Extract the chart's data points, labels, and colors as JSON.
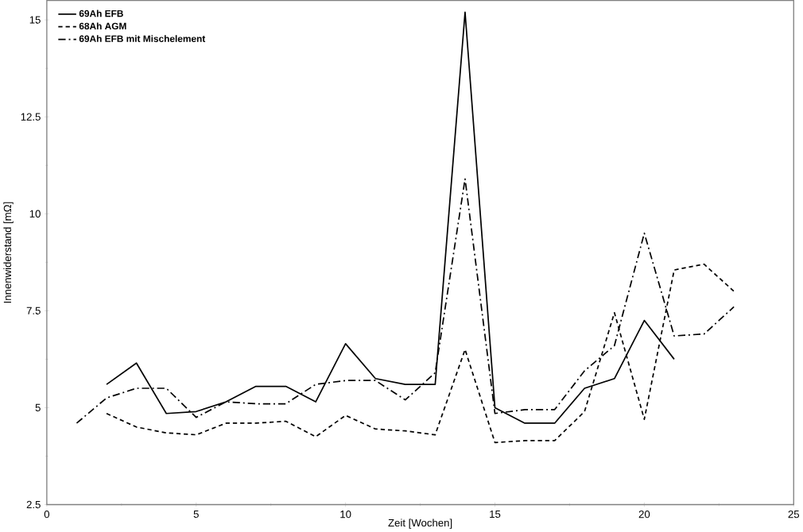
{
  "chart_data": {
    "type": "line",
    "xlabel": "Zeit [Wochen]",
    "ylabel": "Innenwiderstand [mΩ]",
    "xlim": [
      0,
      25
    ],
    "ylim": [
      2.5,
      15.5
    ],
    "xticks": [
      0,
      5,
      10,
      15,
      20,
      25
    ],
    "yticks": [
      2.5,
      5,
      7.5,
      10,
      12.5,
      15
    ],
    "legend": "top left",
    "grid": false,
    "marker": "none",
    "series": [
      {
        "name": "69Ah EFB",
        "color": "#000000",
        "line_style": "solid",
        "x": [
          2,
          3,
          4,
          5,
          6,
          7,
          8,
          9,
          10,
          11,
          12,
          13,
          14,
          15,
          16,
          17,
          18,
          19,
          20,
          21
        ],
        "values": [
          5.6,
          6.15,
          4.85,
          4.9,
          5.15,
          5.55,
          5.55,
          5.15,
          6.65,
          5.75,
          5.6,
          5.6,
          15.2,
          5.0,
          4.6,
          4.6,
          5.5,
          5.75,
          7.25,
          6.25
        ]
      },
      {
        "name": "68Ah AGM",
        "color": "#000000",
        "line_style": "dashed",
        "x": [
          2,
          3,
          4,
          5,
          6,
          7,
          8,
          9,
          10,
          11,
          12,
          13,
          14,
          15,
          16,
          17,
          18,
          19,
          20,
          21,
          22,
          23
        ],
        "values": [
          4.85,
          4.5,
          4.35,
          4.3,
          4.6,
          4.6,
          4.65,
          4.25,
          4.8,
          4.45,
          4.4,
          4.3,
          6.5,
          4.1,
          4.15,
          4.15,
          4.9,
          7.45,
          4.7,
          8.55,
          8.7,
          8.0
        ]
      },
      {
        "name": "69Ah EFB mit Mischelement",
        "color": "#000000",
        "line_style": "dashdot",
        "x": [
          1,
          2,
          3,
          4,
          5,
          6,
          7,
          8,
          9,
          10,
          11,
          12,
          13,
          14,
          15,
          16,
          17,
          18,
          19,
          20,
          21,
          22,
          23
        ],
        "values": [
          4.6,
          5.25,
          5.5,
          5.5,
          4.75,
          5.15,
          5.1,
          5.1,
          5.6,
          5.7,
          5.7,
          5.2,
          5.9,
          10.9,
          4.85,
          4.95,
          4.95,
          5.95,
          6.6,
          9.5,
          6.85,
          6.9,
          7.6
        ]
      }
    ]
  }
}
